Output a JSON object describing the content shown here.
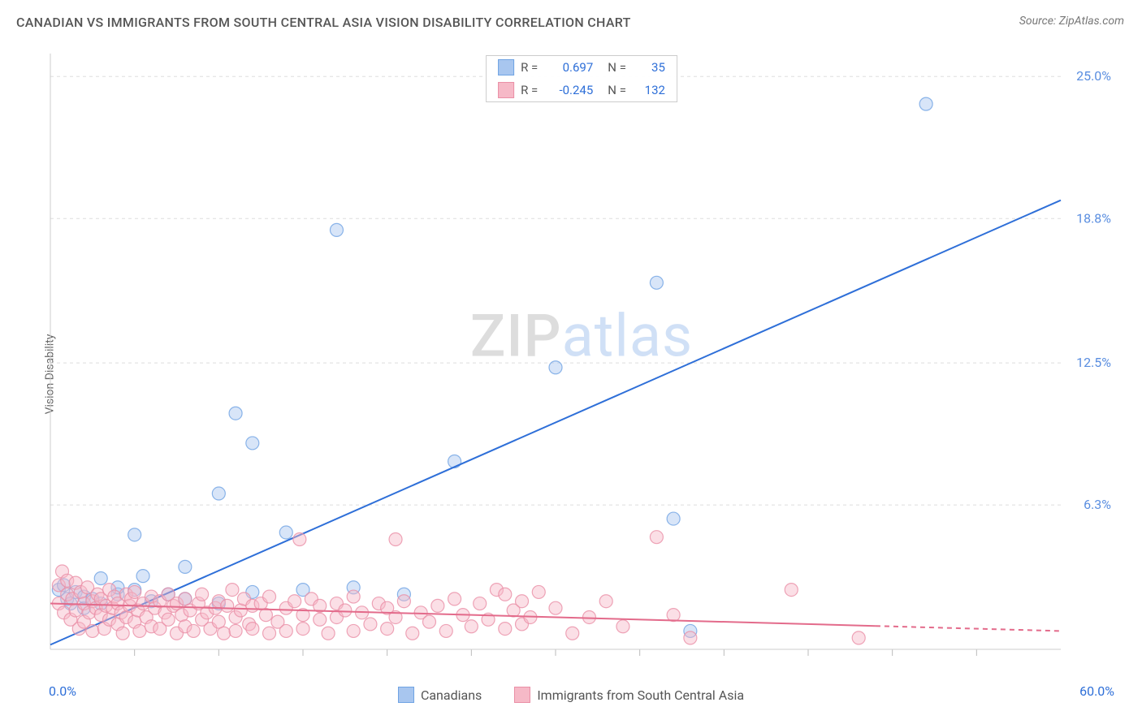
{
  "header": {
    "title": "CANADIAN VS IMMIGRANTS FROM SOUTH CENTRAL ASIA VISION DISABILITY CORRELATION CHART",
    "source_prefix": "Source: ",
    "source_link": "ZipAtlas.com"
  },
  "chart": {
    "type": "scatter",
    "ylabel": "Vision Disability",
    "watermark": {
      "part1": "ZIP",
      "part2": "atlas"
    },
    "background_color": "#ffffff",
    "grid_color": "#dddddd",
    "axis_color": "#cccccc",
    "tick_color": "#bbbbbb",
    "xlim": [
      0,
      60
    ],
    "ylim": [
      0,
      26
    ],
    "x_axis": {
      "min_label": "0.0%",
      "max_label": "60.0%",
      "label_color": "#2e6fd8",
      "ticks_every": 5
    },
    "y_axis": {
      "ticks": [
        {
          "v": 6.3,
          "label": "6.3%"
        },
        {
          "v": 12.5,
          "label": "12.5%"
        },
        {
          "v": 18.8,
          "label": "18.8%"
        },
        {
          "v": 25.0,
          "label": "25.0%"
        }
      ],
      "label_color": "#5a8ee0",
      "label_fontsize": 16
    },
    "marker_radius": 8,
    "marker_opacity": 0.45,
    "line_width": 2,
    "series": [
      {
        "key": "canadians",
        "name": "Canadians",
        "fill": "#a8c6ef",
        "stroke": "#6fa3e3",
        "line_color": "#2e6fd8",
        "stats": {
          "R": "0.697",
          "N": "35"
        },
        "regression": {
          "x1": 0,
          "y1": 0.2,
          "x2": 60,
          "y2": 19.6,
          "solid_until_x": 60
        },
        "points": [
          [
            0.5,
            2.6
          ],
          [
            1,
            2.2
          ],
          [
            0.8,
            2.8
          ],
          [
            1.2,
            2.0
          ],
          [
            1.5,
            2.5
          ],
          [
            2,
            1.8
          ],
          [
            2,
            2.3
          ],
          [
            2.5,
            2.2
          ],
          [
            3,
            3.1
          ],
          [
            3,
            2.0
          ],
          [
            4,
            2.4
          ],
          [
            4,
            2.7
          ],
          [
            5,
            5.0
          ],
          [
            5,
            2.6
          ],
          [
            5.5,
            3.2
          ],
          [
            6,
            2.1
          ],
          [
            7,
            2.4
          ],
          [
            8,
            3.6
          ],
          [
            8,
            2.2
          ],
          [
            10,
            6.8
          ],
          [
            10,
            2.0
          ],
          [
            11,
            10.3
          ],
          [
            12,
            2.5
          ],
          [
            12,
            9.0
          ],
          [
            14,
            5.1
          ],
          [
            15,
            2.6
          ],
          [
            17,
            18.3
          ],
          [
            18,
            2.7
          ],
          [
            21,
            2.4
          ],
          [
            24,
            8.2
          ],
          [
            30,
            12.3
          ],
          [
            36,
            16.0
          ],
          [
            37,
            5.7
          ],
          [
            38,
            0.8
          ],
          [
            52,
            23.8
          ]
        ]
      },
      {
        "key": "immigrants",
        "name": "Immigrants from South Central Asia",
        "fill": "#f6b9c7",
        "stroke": "#ea8fa6",
        "line_color": "#e36b8b",
        "stats": {
          "R": "-0.245",
          "N": "132"
        },
        "regression": {
          "x1": 0,
          "y1": 2.0,
          "x2": 60,
          "y2": 0.8,
          "solid_until_x": 49
        },
        "points": [
          [
            0.5,
            2.0
          ],
          [
            0.5,
            2.8
          ],
          [
            0.7,
            3.4
          ],
          [
            0.8,
            1.6
          ],
          [
            1,
            2.4
          ],
          [
            1,
            3.0
          ],
          [
            1.2,
            1.3
          ],
          [
            1.3,
            2.2
          ],
          [
            1.5,
            2.9
          ],
          [
            1.5,
            1.7
          ],
          [
            1.7,
            0.9
          ],
          [
            1.8,
            2.5
          ],
          [
            2,
            2.0
          ],
          [
            2,
            1.2
          ],
          [
            2.2,
            2.7
          ],
          [
            2.3,
            1.6
          ],
          [
            2.5,
            2.1
          ],
          [
            2.5,
            0.8
          ],
          [
            2.7,
            1.8
          ],
          [
            2.8,
            2.4
          ],
          [
            3,
            1.5
          ],
          [
            3,
            2.2
          ],
          [
            3.2,
            0.9
          ],
          [
            3.3,
            1.9
          ],
          [
            3.5,
            2.6
          ],
          [
            3.5,
            1.3
          ],
          [
            3.7,
            1.8
          ],
          [
            3.8,
            2.3
          ],
          [
            4,
            1.1
          ],
          [
            4,
            2.0
          ],
          [
            4.2,
            1.6
          ],
          [
            4.3,
            0.7
          ],
          [
            4.5,
            2.4
          ],
          [
            4.5,
            1.4
          ],
          [
            4.7,
            1.9
          ],
          [
            4.8,
            2.2
          ],
          [
            5,
            1.2
          ],
          [
            5,
            2.5
          ],
          [
            5.2,
            1.7
          ],
          [
            5.3,
            0.8
          ],
          [
            5.5,
            2.0
          ],
          [
            5.7,
            1.4
          ],
          [
            6,
            2.3
          ],
          [
            6,
            1.0
          ],
          [
            6.2,
            1.8
          ],
          [
            6.5,
            2.1
          ],
          [
            6.5,
            0.9
          ],
          [
            6.8,
            1.6
          ],
          [
            7,
            2.4
          ],
          [
            7,
            1.3
          ],
          [
            7.3,
            1.9
          ],
          [
            7.5,
            0.7
          ],
          [
            7.5,
            2.0
          ],
          [
            7.8,
            1.5
          ],
          [
            8,
            2.2
          ],
          [
            8,
            1.0
          ],
          [
            8.3,
            1.7
          ],
          [
            8.5,
            0.8
          ],
          [
            8.8,
            2.0
          ],
          [
            9,
            1.3
          ],
          [
            9,
            2.4
          ],
          [
            9.3,
            1.6
          ],
          [
            9.5,
            0.9
          ],
          [
            9.8,
            1.8
          ],
          [
            10,
            1.2
          ],
          [
            10,
            2.1
          ],
          [
            10.3,
            0.7
          ],
          [
            10.5,
            1.9
          ],
          [
            10.8,
            2.6
          ],
          [
            11,
            1.4
          ],
          [
            11,
            0.8
          ],
          [
            11.3,
            1.7
          ],
          [
            11.5,
            2.2
          ],
          [
            11.8,
            1.1
          ],
          [
            12,
            1.9
          ],
          [
            12,
            0.9
          ],
          [
            12.5,
            2.0
          ],
          [
            12.8,
            1.5
          ],
          [
            13,
            0.7
          ],
          [
            13,
            2.3
          ],
          [
            13.5,
            1.2
          ],
          [
            14,
            1.8
          ],
          [
            14,
            0.8
          ],
          [
            14.5,
            2.1
          ],
          [
            14.8,
            4.8
          ],
          [
            15,
            1.5
          ],
          [
            15,
            0.9
          ],
          [
            15.5,
            2.2
          ],
          [
            16,
            1.3
          ],
          [
            16,
            1.9
          ],
          [
            16.5,
            0.7
          ],
          [
            17,
            2.0
          ],
          [
            17,
            1.4
          ],
          [
            17.5,
            1.7
          ],
          [
            18,
            0.8
          ],
          [
            18,
            2.3
          ],
          [
            18.5,
            1.6
          ],
          [
            19,
            1.1
          ],
          [
            19.5,
            2.0
          ],
          [
            20,
            0.9
          ],
          [
            20,
            1.8
          ],
          [
            20.5,
            4.8
          ],
          [
            20.5,
            1.4
          ],
          [
            21,
            2.1
          ],
          [
            21.5,
            0.7
          ],
          [
            22,
            1.6
          ],
          [
            22.5,
            1.2
          ],
          [
            23,
            1.9
          ],
          [
            23.5,
            0.8
          ],
          [
            24,
            2.2
          ],
          [
            24.5,
            1.5
          ],
          [
            25,
            1.0
          ],
          [
            25.5,
            2.0
          ],
          [
            26,
            1.3
          ],
          [
            26.5,
            2.6
          ],
          [
            27,
            2.4
          ],
          [
            27,
            0.9
          ],
          [
            27.5,
            1.7
          ],
          [
            28,
            1.1
          ],
          [
            28,
            2.1
          ],
          [
            28.5,
            1.4
          ],
          [
            29,
            2.5
          ],
          [
            30,
            1.8
          ],
          [
            31,
            0.7
          ],
          [
            32,
            1.4
          ],
          [
            33,
            2.1
          ],
          [
            34,
            1.0
          ],
          [
            36,
            4.9
          ],
          [
            37,
            1.5
          ],
          [
            38,
            0.5
          ],
          [
            44,
            2.6
          ],
          [
            48,
            0.5
          ]
        ]
      }
    ],
    "legend_top": {
      "R_label": "R =",
      "N_label": "N =",
      "value_color": "#2e6fd8"
    },
    "legend_bottom_order": [
      "canadians",
      "immigrants"
    ]
  }
}
